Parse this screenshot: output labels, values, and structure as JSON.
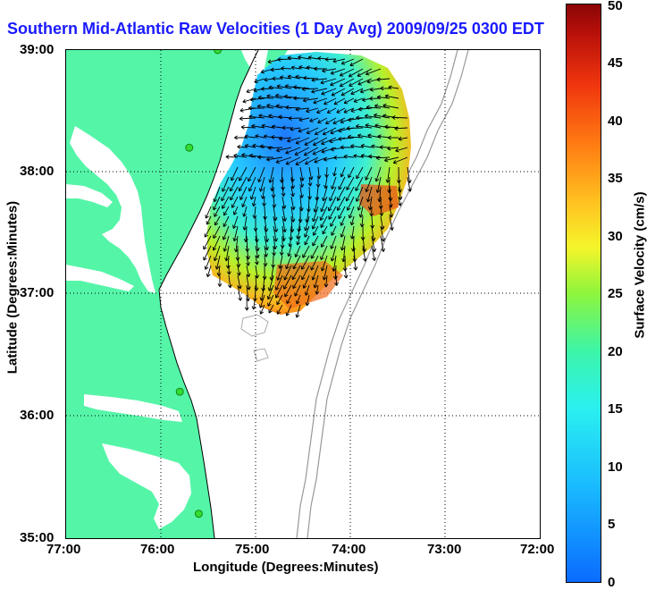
{
  "title": "Southern Mid-Atlantic Raw Velocities (1 Day Avg) 2009/09/25 0300 EDT",
  "x_axis": {
    "label": "Longitude (Degrees:Minutes)",
    "ticks": [
      "77:00",
      "76:00",
      "75:00",
      "74:00",
      "73:00",
      "72:00"
    ]
  },
  "y_axis": {
    "label": "Latitude (Degrees:Minutes)",
    "ticks": [
      "39:00",
      "38:00",
      "37:00",
      "36:00",
      "35:00"
    ]
  },
  "colorbar": {
    "label": "Surface Velocity (cm/s)",
    "ticks": [
      "50",
      "45",
      "40",
      "35",
      "30",
      "25",
      "20",
      "15",
      "10",
      "5",
      "0"
    ],
    "min": 0,
    "max": 50
  },
  "colors": {
    "land": "#55f5a8",
    "water": "#ffffff",
    "coast": "#000000",
    "bathymetry": "#999999",
    "title": "#1a1aff",
    "station": "#33dd33"
  },
  "stations": [
    {
      "lon": -75.4,
      "lat": 39.0
    },
    {
      "lon": -75.7,
      "lat": 38.2
    },
    {
      "lon": -75.8,
      "lat": 36.2
    },
    {
      "lon": -75.6,
      "lat": 35.2
    }
  ]
}
